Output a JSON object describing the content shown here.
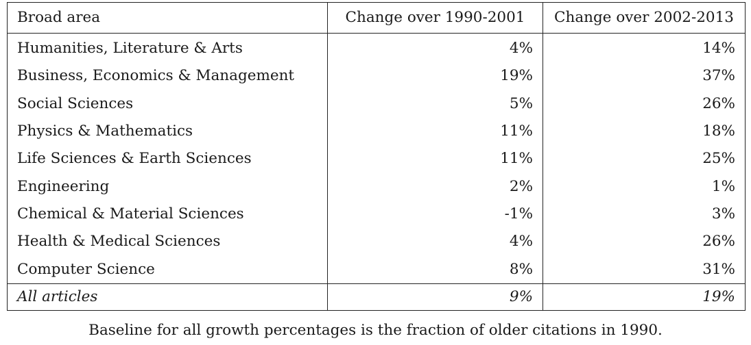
{
  "table": {
    "headers": [
      "Broad area",
      "Change over 1990-2001",
      "Change over 2002-2013"
    ],
    "rows": [
      {
        "area": "Humanities, Literature & Arts",
        "p1": "4%",
        "p2": "14%"
      },
      {
        "area": "Business, Economics & Management",
        "p1": "19%",
        "p2": "37%"
      },
      {
        "area": "Social Sciences",
        "p1": "5%",
        "p2": "26%"
      },
      {
        "area": "Physics & Mathematics",
        "p1": "11%",
        "p2": "18%"
      },
      {
        "area": "Life Sciences & Earth Sciences",
        "p1": "11%",
        "p2": "25%"
      },
      {
        "area": "Engineering",
        "p1": "2%",
        "p2": "1%"
      },
      {
        "area": "Chemical & Material Sciences",
        "p1": "-1%",
        "p2": "3%"
      },
      {
        "area": "Health & Medical Sciences",
        "p1": "4%",
        "p2": "26%"
      },
      {
        "area": "Computer Science",
        "p1": "8%",
        "p2": "31%"
      }
    ],
    "total": {
      "area": "All articles",
      "p1": "9%",
      "p2": "19%"
    }
  },
  "caption": "Baseline for all growth percentages is the fraction of older citations in 1990."
}
